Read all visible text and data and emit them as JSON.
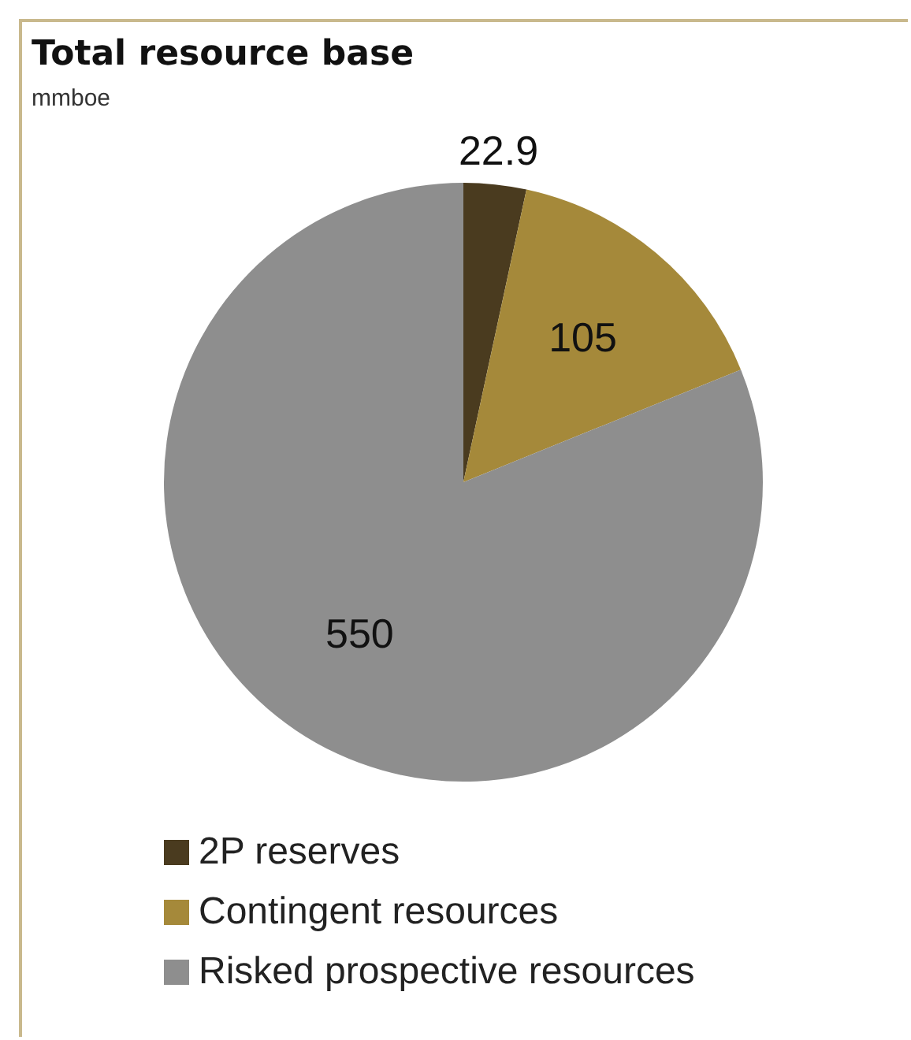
{
  "chart_data": {
    "type": "pie",
    "title": "Total resource base",
    "subtitle": "mmboe",
    "categories": [
      "2P reserves",
      "Contingent resources",
      "Risked prospective resources"
    ],
    "values": [
      22.9,
      105,
      550
    ],
    "colors": [
      "#4a3b1f",
      "#a5893a",
      "#8e8e8e"
    ],
    "data_labels": true,
    "legend": "bottom"
  }
}
